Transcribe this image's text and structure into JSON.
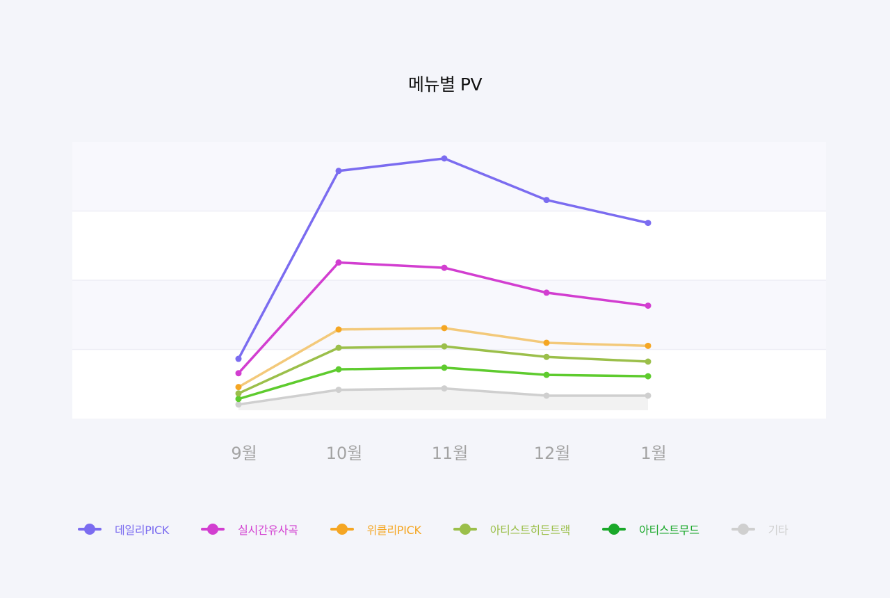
{
  "chart_data": {
    "type": "line",
    "title": "메뉴별 PV",
    "xlabel": "",
    "ylabel": "",
    "categories": [
      "9월",
      "10월",
      "11월",
      "12월",
      "1월"
    ],
    "ylim": [
      0,
      100
    ],
    "grid": true,
    "legend_position": "bottom",
    "series": [
      {
        "name": "데일리PICK",
        "color": "#7b6cf0",
        "values": [
          21.6,
          89.5,
          94,
          79,
          70.7
        ]
      },
      {
        "name": "실시간유사곡",
        "color": "#d23ed0",
        "values": [
          16.4,
          56.4,
          54.5,
          45.5,
          40.8
        ]
      },
      {
        "name": "위클리PICK",
        "color": "#f5a623",
        "line_color": "#f3c97a",
        "values": [
          11.4,
          32.2,
          32.7,
          27.4,
          26.3
        ]
      },
      {
        "name": "아티스트히든트랙",
        "color": "#9bbf4a",
        "values": [
          9.1,
          25.6,
          26.1,
          22.3,
          20.6
        ]
      },
      {
        "name": "아티스트무드",
        "color": "#1aa82a",
        "line_color": "#5ecb2e",
        "point_color": "#5ecb2e",
        "values": [
          7.1,
          17.8,
          18.4,
          15.8,
          15.3
        ]
      },
      {
        "name": "기타",
        "color": "#cfcfcf",
        "values": [
          5.1,
          10.4,
          10.9,
          8.3,
          8.3
        ]
      }
    ]
  }
}
